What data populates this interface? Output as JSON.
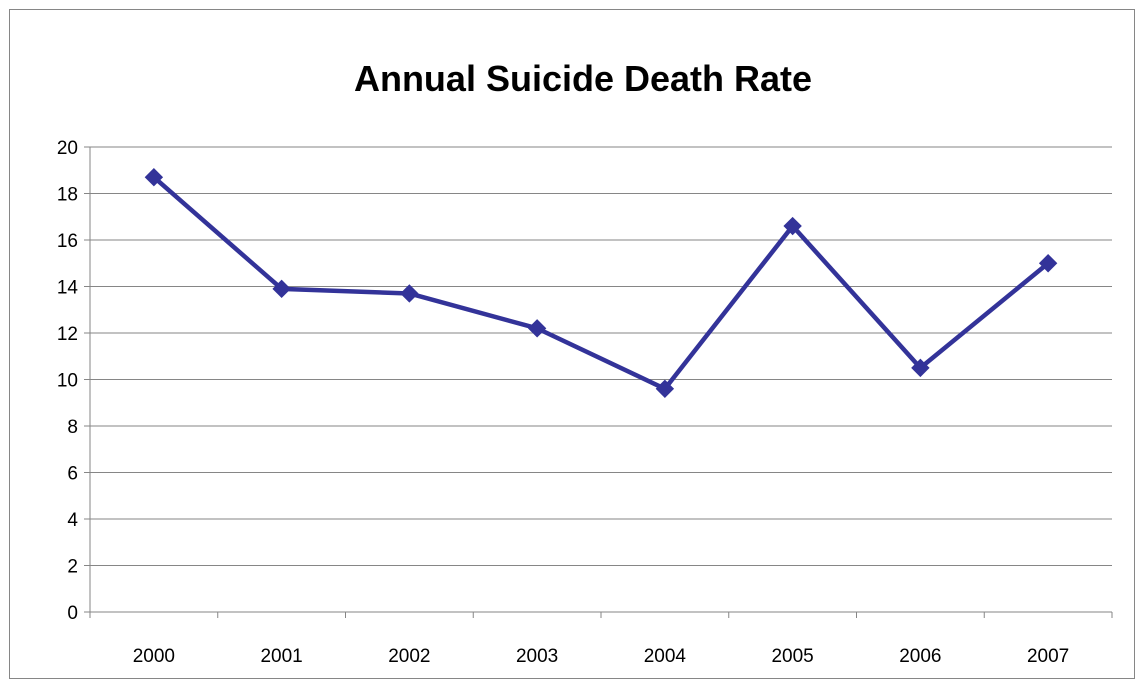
{
  "chart_data": {
    "type": "line",
    "title": "Annual Suicide Death Rate",
    "xlabel": "",
    "ylabel": "",
    "categories": [
      "2000",
      "2001",
      "2002",
      "2003",
      "2004",
      "2005",
      "2006",
      "2007"
    ],
    "series": [
      {
        "values": [
          18.7,
          13.9,
          13.7,
          12.2,
          9.6,
          16.6,
          10.5,
          15.0
        ],
        "color": "#333399",
        "marker": "diamond"
      }
    ],
    "ylim": [
      0,
      20
    ],
    "yticks": [
      "0",
      "2",
      "4",
      "6",
      "8",
      "10",
      "12",
      "14",
      "16",
      "18",
      "20"
    ],
    "grid": "horizontal",
    "legend": "none",
    "colors": {
      "gridline": "#868686",
      "axis": "#868686",
      "series": "#333399"
    }
  }
}
